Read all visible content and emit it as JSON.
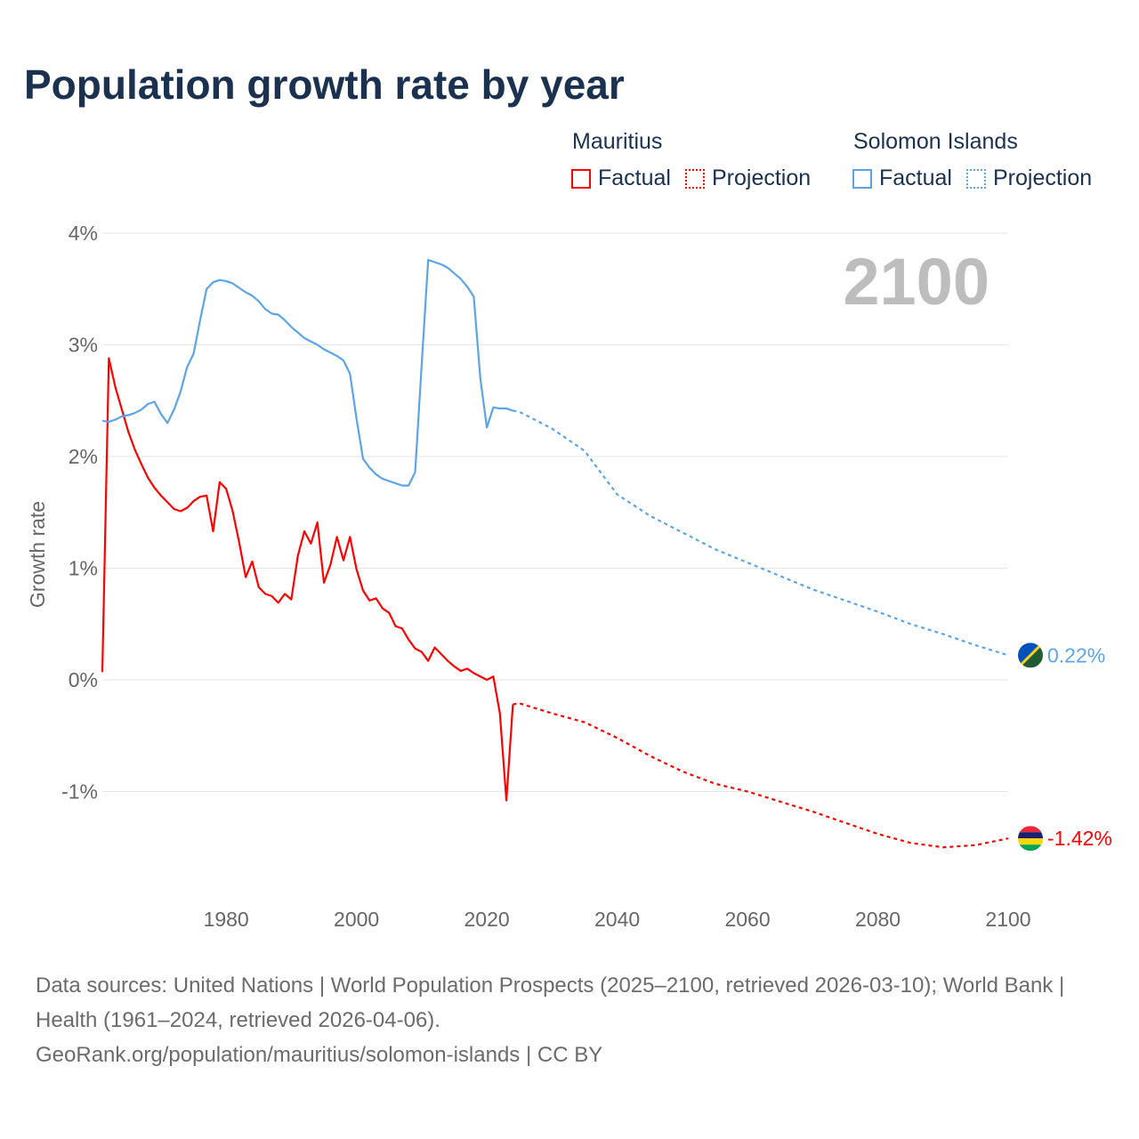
{
  "title": "Population growth rate by year",
  "legend": {
    "groups": [
      {
        "name": "Mauritius",
        "color": "#ff0000",
        "factual": "Factual",
        "projection": "Projection"
      },
      {
        "name": "Solomon Islands",
        "color": "#5aa5ea",
        "factual": "Factual",
        "projection": "Projection"
      }
    ]
  },
  "year_label": "2100",
  "footer": {
    "sources": "Data sources: United Nations | World Population Prospects (2025–2100, retrieved 2026-03-10); World Bank | Health (1961–2024, retrieved 2026-04-06).",
    "link": "GeoRank.org/population/mauritius/solomon-islands | CC BY"
  },
  "chart_data": {
    "type": "line",
    "title": "Population growth rate by year",
    "xlabel": "",
    "ylabel": "Growth rate",
    "xlim": [
      1961,
      2100
    ],
    "ylim": [
      -2,
      4
    ],
    "x_ticks": [
      {
        "v": 1980,
        "label": "1980"
      },
      {
        "v": 2000,
        "label": "2000"
      },
      {
        "v": 2020,
        "label": "2020"
      },
      {
        "v": 2040,
        "label": "2040"
      },
      {
        "v": 2060,
        "label": "2060"
      },
      {
        "v": 2080,
        "label": "2080"
      },
      {
        "v": 2100,
        "label": "2100"
      }
    ],
    "y_ticks": [
      {
        "v": 4,
        "label": "4%"
      },
      {
        "v": 3,
        "label": "3%"
      },
      {
        "v": 2,
        "label": "2%"
      },
      {
        "v": 1,
        "label": "1%"
      },
      {
        "v": 0,
        "label": "0%"
      },
      {
        "v": -1,
        "label": "-1%"
      }
    ],
    "grid": true,
    "series": [
      {
        "name": "Mauritius",
        "color": "#ff0000",
        "end_label": "-1.42%",
        "factual_start": 1961,
        "factual": [
          0.07,
          2.88,
          2.62,
          2.42,
          2.22,
          2.06,
          1.93,
          1.81,
          1.72,
          1.65,
          1.59,
          1.53,
          1.51,
          1.54,
          1.6,
          1.64,
          1.65,
          1.33,
          1.77,
          1.71,
          1.51,
          1.23,
          0.92,
          1.06,
          0.83,
          0.77,
          0.75,
          0.69,
          0.77,
          0.72,
          1.11,
          1.33,
          1.22,
          1.41,
          0.87,
          1.03,
          1.28,
          1.07,
          1.28,
          0.99,
          0.8,
          0.71,
          0.73,
          0.64,
          0.6,
          0.48,
          0.46,
          0.36,
          0.28,
          0.25,
          0.17,
          0.29,
          0.23,
          0.17,
          0.12,
          0.08,
          0.1,
          0.06,
          0.03,
          0.0,
          0.03,
          -0.3,
          -1.08,
          -0.22
        ],
        "projection_years": [
          2024,
          2025,
          2030,
          2035,
          2040,
          2045,
          2050,
          2055,
          2060,
          2065,
          2070,
          2075,
          2080,
          2085,
          2090,
          2095,
          2100
        ],
        "projection": [
          -0.22,
          -0.21,
          -0.3,
          -0.38,
          -0.52,
          -0.68,
          -0.82,
          -0.93,
          -1.0,
          -1.09,
          -1.18,
          -1.28,
          -1.38,
          -1.46,
          -1.5,
          -1.48,
          -1.42
        ]
      },
      {
        "name": "Solomon Islands",
        "color": "#5aa5ea",
        "end_label": "0.22%",
        "factual_start": 1961,
        "factual": [
          2.32,
          2.31,
          2.33,
          2.36,
          2.37,
          2.39,
          2.42,
          2.47,
          2.49,
          2.38,
          2.3,
          2.42,
          2.58,
          2.8,
          2.92,
          3.22,
          3.5,
          3.56,
          3.58,
          3.57,
          3.55,
          3.51,
          3.47,
          3.44,
          3.39,
          3.32,
          3.28,
          3.27,
          3.22,
          3.16,
          3.11,
          3.06,
          3.03,
          3.0,
          2.96,
          2.93,
          2.9,
          2.86,
          2.74,
          2.34,
          1.98,
          1.9,
          1.84,
          1.8,
          1.78,
          1.76,
          1.74,
          1.74,
          1.86,
          2.82,
          3.76,
          3.74,
          3.72,
          3.69,
          3.64,
          3.59,
          3.52,
          3.43,
          2.7,
          2.26,
          2.44,
          2.43,
          2.43,
          2.41
        ],
        "projection_years": [
          2024,
          2025,
          2030,
          2035,
          2040,
          2045,
          2050,
          2055,
          2060,
          2065,
          2070,
          2075,
          2080,
          2085,
          2090,
          2095,
          2100
        ],
        "projection": [
          2.41,
          2.4,
          2.25,
          2.05,
          1.66,
          1.47,
          1.32,
          1.17,
          1.05,
          0.93,
          0.81,
          0.71,
          0.61,
          0.5,
          0.41,
          0.31,
          0.22
        ]
      }
    ]
  }
}
